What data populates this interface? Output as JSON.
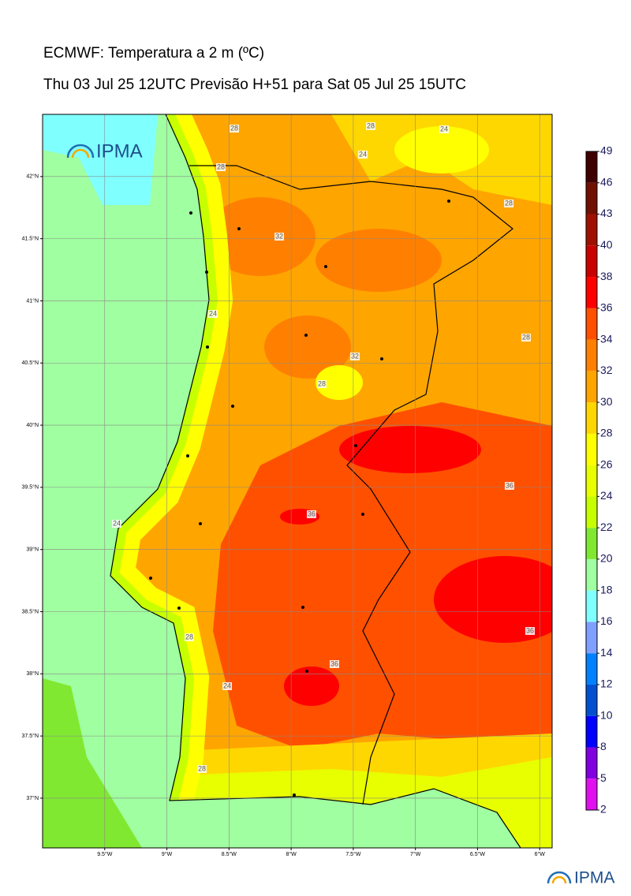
{
  "title": "ECMWF: Temperatura a 2 m (ºC)",
  "subtitle": "Thu 03 Jul 25 12UTC Previsão H+51 para Sat 05 Jul 25 15UTC",
  "logo": "IPMA",
  "map": {
    "xlim": [
      -10.0,
      -5.9
    ],
    "ylim": [
      36.6,
      42.5
    ],
    "xticks": [
      {
        "value": -9.5,
        "label": "9.5°W"
      },
      {
        "value": -9,
        "label": "9°W"
      },
      {
        "value": -8.5,
        "label": "8.5°W"
      },
      {
        "value": -8,
        "label": "8°W"
      },
      {
        "value": -7.5,
        "label": "7.5°W"
      },
      {
        "value": -7,
        "label": "7°W"
      },
      {
        "value": -6.5,
        "label": "6.5°W"
      },
      {
        "value": -6,
        "label": "6°W"
      }
    ],
    "yticks": [
      {
        "value": 42,
        "label": "42°N"
      },
      {
        "value": 41.5,
        "label": "41.5°N"
      },
      {
        "value": 41,
        "label": "41°N"
      },
      {
        "value": 40.5,
        "label": "40.5°N"
      },
      {
        "value": 40,
        "label": "40°N"
      },
      {
        "value": 39.5,
        "label": "39.5°N"
      },
      {
        "value": 39,
        "label": "39°N"
      },
      {
        "value": 38.5,
        "label": "38.5°N"
      },
      {
        "value": 38,
        "label": "38°N"
      },
      {
        "value": 37.5,
        "label": "37.5°N"
      },
      {
        "value": 37,
        "label": "37°N"
      }
    ],
    "contour_labels": [
      28,
      28,
      24,
      24,
      32,
      28,
      28,
      24,
      32,
      28,
      28,
      36,
      36,
      36,
      36,
      24,
      28,
      24,
      28
    ]
  },
  "colorbar": {
    "ticks": [
      2,
      5,
      8,
      10,
      12,
      14,
      16,
      18,
      20,
      22,
      24,
      26,
      28,
      30,
      32,
      34,
      36,
      38,
      40,
      43,
      46,
      49
    ],
    "colors": [
      "#e010f0",
      "#8000e0",
      "#0000ff",
      "#0050d0",
      "#0080ff",
      "#80a0ff",
      "#80ffff",
      "#a0ffa0",
      "#80e830",
      "#c8ff00",
      "#e8ff00",
      "#ffff00",
      "#ffd700",
      "#ffa500",
      "#ff8000",
      "#ff5000",
      "#ff0000",
      "#c80000",
      "#a01000",
      "#701000",
      "#400000"
    ]
  }
}
